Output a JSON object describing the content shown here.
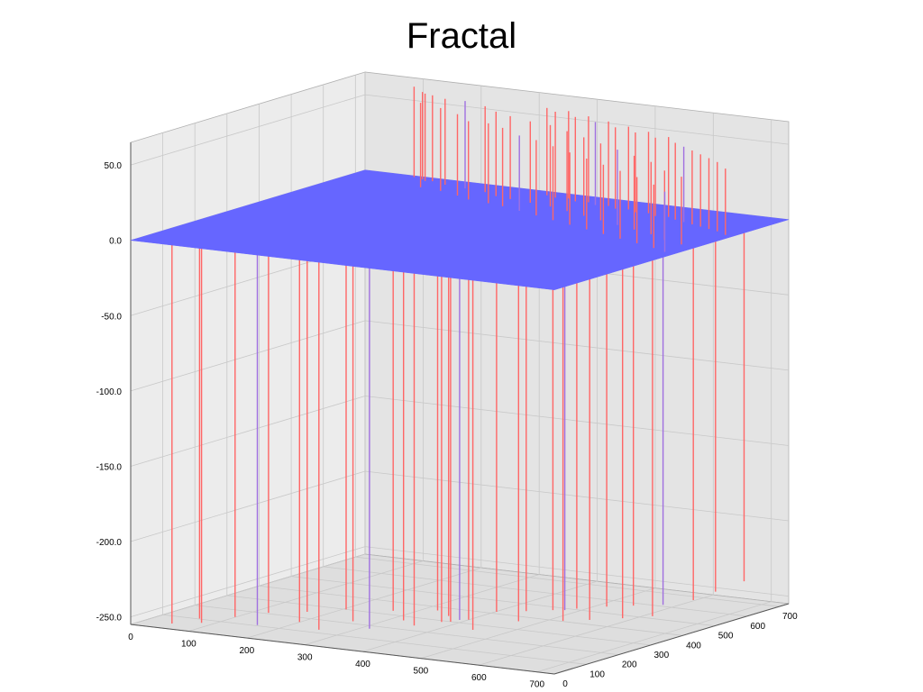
{
  "chart_data": {
    "type": "surface3d",
    "title": "Fractal",
    "xlabel": "",
    "ylabel": "",
    "zlabel": "",
    "x_ticks": [
      "0",
      "100",
      "200",
      "300",
      "400",
      "500",
      "600",
      "700"
    ],
    "y_ticks": [
      "0",
      "100",
      "200",
      "300",
      "400",
      "500",
      "600",
      "700"
    ],
    "z_ticks": [
      "50.0",
      "0.0",
      "-50.0",
      "-100.0",
      "-150.0",
      "-200.0",
      "-250.0"
    ],
    "xlim": [
      0,
      730
    ],
    "ylim": [
      0,
      730
    ],
    "zlim": [
      -255,
      65
    ],
    "grid": true,
    "colors": {
      "surface": "#6666ff",
      "spike_pos": "#ff6666",
      "spike_neg": "#ff6666",
      "spike_mix": "#a070e0",
      "pane": "#e6e6e6",
      "grid": "#c8c8c8"
    },
    "surface_z": 0,
    "up_spikes": [
      {
        "x": 120,
        "y": 700,
        "z": 58
      },
      {
        "x": 140,
        "y": 650,
        "z": 56
      },
      {
        "x": 160,
        "y": 690,
        "z": 57
      },
      {
        "x": 180,
        "y": 640,
        "z": 55
      },
      {
        "x": 200,
        "y": 680,
        "z": 58
      },
      {
        "x": 220,
        "y": 620,
        "z": 54
      },
      {
        "x": 240,
        "y": 670,
        "z": 57
      },
      {
        "x": 250,
        "y": 600,
        "z": 52
      },
      {
        "x": 270,
        "y": 650,
        "z": 56
      },
      {
        "x": 290,
        "y": 590,
        "z": 53
      },
      {
        "x": 300,
        "y": 640,
        "z": 55
      },
      {
        "x": 320,
        "y": 580,
        "z": 52
      },
      {
        "x": 340,
        "y": 630,
        "z": 54
      },
      {
        "x": 360,
        "y": 560,
        "z": 50
      },
      {
        "x": 380,
        "y": 620,
        "z": 54
      },
      {
        "x": 400,
        "y": 540,
        "z": 50
      },
      {
        "x": 420,
        "y": 600,
        "z": 53
      },
      {
        "x": 440,
        "y": 520,
        "z": 49
      },
      {
        "x": 460,
        "y": 580,
        "z": 52
      },
      {
        "x": 480,
        "y": 500,
        "z": 48
      },
      {
        "x": 500,
        "y": 560,
        "z": 51
      },
      {
        "x": 520,
        "y": 480,
        "z": 47
      },
      {
        "x": 540,
        "y": 540,
        "z": 50
      },
      {
        "x": 560,
        "y": 460,
        "z": 46
      },
      {
        "x": 580,
        "y": 520,
        "z": 49
      },
      {
        "x": 600,
        "y": 440,
        "z": 45
      },
      {
        "x": 620,
        "y": 500,
        "z": 48
      },
      {
        "x": 640,
        "y": 420,
        "z": 44
      },
      {
        "x": 660,
        "y": 470,
        "z": 46
      },
      {
        "x": 680,
        "y": 400,
        "z": 42
      },
      {
        "x": 700,
        "y": 450,
        "z": 45
      },
      {
        "x": 710,
        "y": 380,
        "z": 40
      },
      {
        "x": 90,
        "y": 720,
        "z": 60
      },
      {
        "x": 110,
        "y": 710,
        "z": 58
      },
      {
        "x": 130,
        "y": 705,
        "z": 57
      },
      {
        "x": 330,
        "y": 700,
        "z": 58
      },
      {
        "x": 350,
        "y": 690,
        "z": 57
      },
      {
        "x": 370,
        "y": 695,
        "z": 58
      },
      {
        "x": 390,
        "y": 680,
        "z": 56
      },
      {
        "x": 410,
        "y": 685,
        "z": 57
      },
      {
        "x": 430,
        "y": 670,
        "z": 55
      },
      {
        "x": 450,
        "y": 675,
        "z": 56
      },
      {
        "x": 470,
        "y": 660,
        "z": 54
      },
      {
        "x": 490,
        "y": 665,
        "z": 55
      },
      {
        "x": 510,
        "y": 650,
        "z": 53
      },
      {
        "x": 530,
        "y": 655,
        "z": 54
      },
      {
        "x": 550,
        "y": 640,
        "z": 52
      },
      {
        "x": 570,
        "y": 645,
        "z": 53
      },
      {
        "x": 590,
        "y": 630,
        "z": 51
      },
      {
        "x": 610,
        "y": 620,
        "z": 50
      },
      {
        "x": 630,
        "y": 610,
        "z": 49
      },
      {
        "x": 650,
        "y": 600,
        "z": 48
      },
      {
        "x": 670,
        "y": 590,
        "z": 47
      },
      {
        "x": 690,
        "y": 580,
        "z": 46
      },
      {
        "x": 715,
        "y": 560,
        "z": 44
      }
    ],
    "down_spikes": [
      {
        "x": 100,
        "y": 40,
        "z": -252
      },
      {
        "x": 130,
        "y": 90,
        "z": -250
      },
      {
        "x": 160,
        "y": 140,
        "z": -249
      },
      {
        "x": 185,
        "y": 60,
        "z": -251
      },
      {
        "x": 210,
        "y": 170,
        "z": -248
      },
      {
        "x": 230,
        "y": 110,
        "z": -250
      },
      {
        "x": 255,
        "y": 210,
        "z": -247
      },
      {
        "x": 280,
        "y": 80,
        "z": -251
      },
      {
        "x": 300,
        "y": 150,
        "z": -249
      },
      {
        "x": 325,
        "y": 230,
        "z": -246
      },
      {
        "x": 345,
        "y": 120,
        "z": -250
      },
      {
        "x": 365,
        "y": 190,
        "z": -248
      },
      {
        "x": 385,
        "y": 260,
        "z": -245
      },
      {
        "x": 400,
        "y": 160,
        "z": -248
      },
      {
        "x": 415,
        "y": 240,
        "z": -246
      },
      {
        "x": 425,
        "y": 200,
        "z": -247
      },
      {
        "x": 435,
        "y": 210,
        "z": -247
      },
      {
        "x": 445,
        "y": 220,
        "z": -246
      },
      {
        "x": 455,
        "y": 230,
        "z": -246
      },
      {
        "x": 470,
        "y": 290,
        "z": -244
      },
      {
        "x": 490,
        "y": 180,
        "z": -248
      },
      {
        "x": 510,
        "y": 310,
        "z": -243
      },
      {
        "x": 530,
        "y": 250,
        "z": -245
      },
      {
        "x": 545,
        "y": 330,
        "z": -242
      },
      {
        "x": 560,
        "y": 340,
        "z": -242
      },
      {
        "x": 575,
        "y": 350,
        "z": -241
      },
      {
        "x": 590,
        "y": 280,
        "z": -244
      },
      {
        "x": 610,
        "y": 380,
        "z": -240
      },
      {
        "x": 625,
        "y": 300,
        "z": -243
      },
      {
        "x": 645,
        "y": 400,
        "z": -239
      },
      {
        "x": 665,
        "y": 330,
        "z": -242
      },
      {
        "x": 685,
        "y": 420,
        "z": -238
      },
      {
        "x": 700,
        "y": 360,
        "z": -241
      },
      {
        "x": 715,
        "y": 460,
        "z": -236
      },
      {
        "x": 720,
        "y": 520,
        "z": -234
      },
      {
        "x": 725,
        "y": 600,
        "z": -232
      },
      {
        "x": 60,
        "y": 20,
        "z": -253
      },
      {
        "x": 80,
        "y": 70,
        "z": -252
      }
    ]
  }
}
